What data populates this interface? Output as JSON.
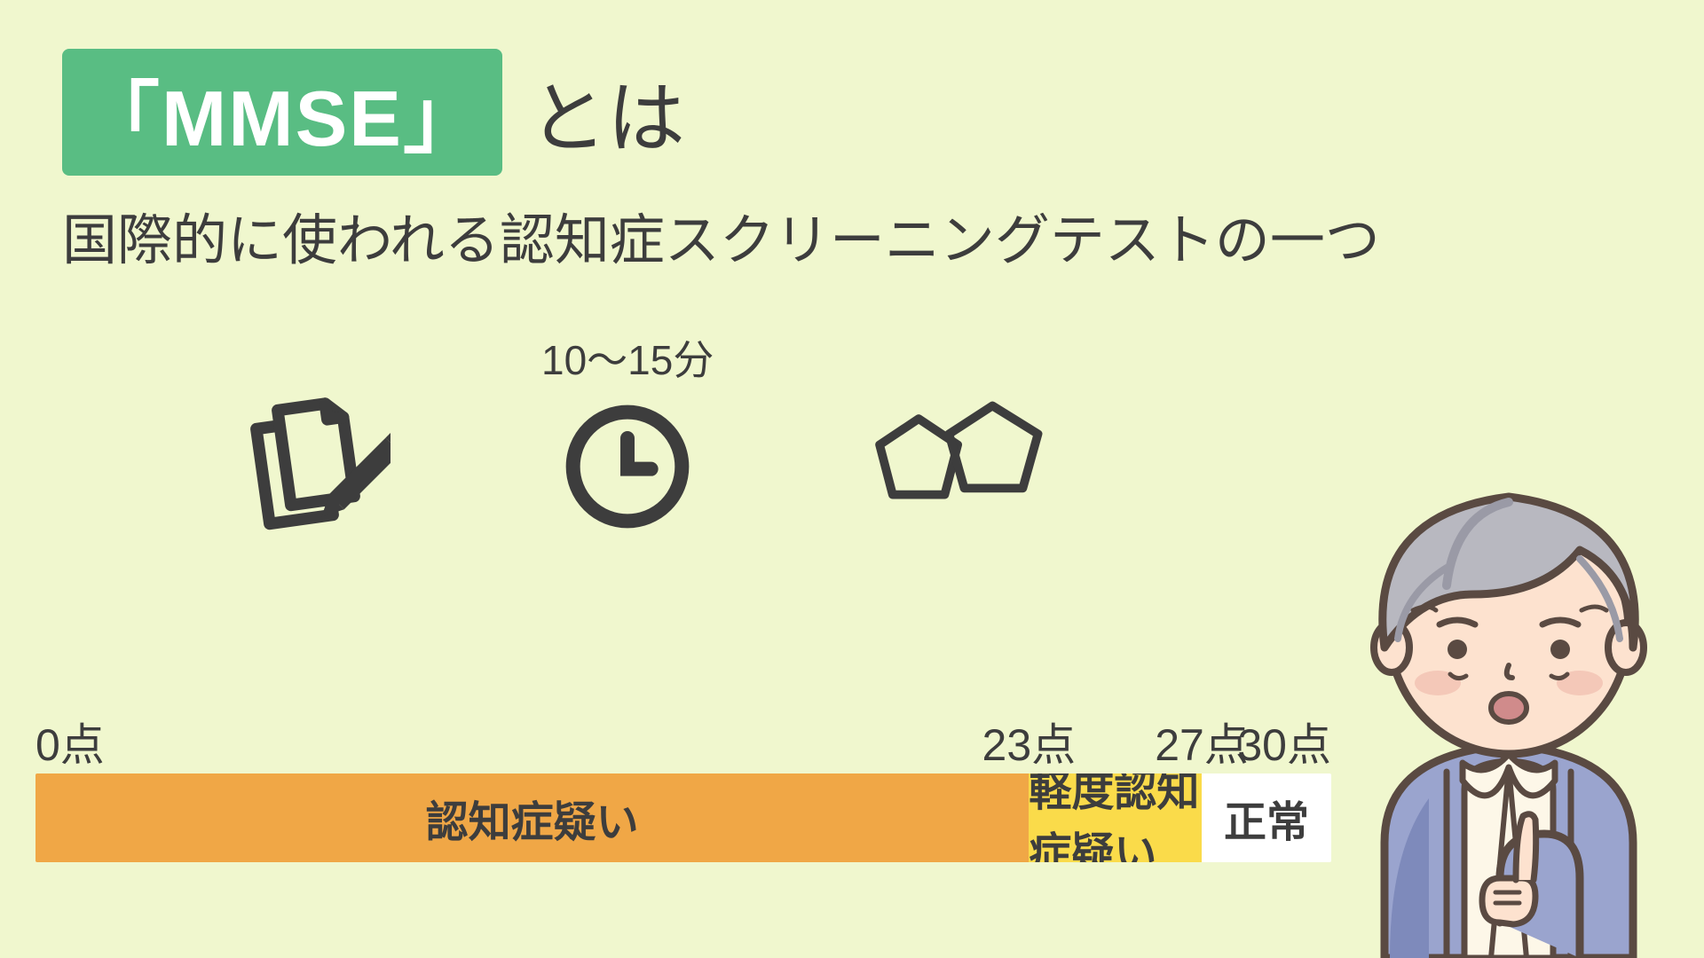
{
  "colors": {
    "background": "#f0f7ce",
    "badge_bg": "#59bd83",
    "badge_text": "#ffffff",
    "text": "#3d3d3d",
    "icon_stroke": "#3d3d3d",
    "scale_seg_1": "#f0a746",
    "scale_seg_2": "#fadb4a",
    "scale_seg_3": "#ffffff",
    "scale_text": "#3d3d3d",
    "person_outline": "#5a4a42",
    "person_skin": "#fde2cf",
    "person_hair": "#b8b8c0",
    "person_hair_shadow": "#9a9aa6",
    "person_cardigan": "#9aa4ce",
    "person_cardigan_shadow": "#7e8abb",
    "person_shirt": "#fdf7e8",
    "person_mouth": "#d08b8b",
    "person_blush": "#f4c8b8"
  },
  "typography": {
    "title_fontsize": 88,
    "subtitle_fontsize": 62,
    "icon_label_fontsize": 46,
    "tick_fontsize": 50,
    "segment_fontsize": 48
  },
  "title": {
    "badge": "「MMSE」",
    "suffix": "とは"
  },
  "subtitle": "国際的に使われる認知症スクリーニングテストの一つ",
  "icons": {
    "clock_label": "10～15分"
  },
  "scale": {
    "min": 0,
    "max": 30,
    "unit": "点",
    "ticks": [
      {
        "value": 0,
        "label": "0点"
      },
      {
        "value": 23,
        "label": "23点"
      },
      {
        "value": 27,
        "label": "27点"
      },
      {
        "value": 30,
        "label": "30点"
      }
    ],
    "segments": [
      {
        "from": 0,
        "to": 23,
        "label": "認知症疑い",
        "color_key": "scale_seg_1"
      },
      {
        "from": 23,
        "to": 27,
        "label": "軽度認知症疑い",
        "color_key": "scale_seg_2"
      },
      {
        "from": 27,
        "to": 30,
        "label": "正常",
        "color_key": "scale_seg_3"
      }
    ]
  }
}
